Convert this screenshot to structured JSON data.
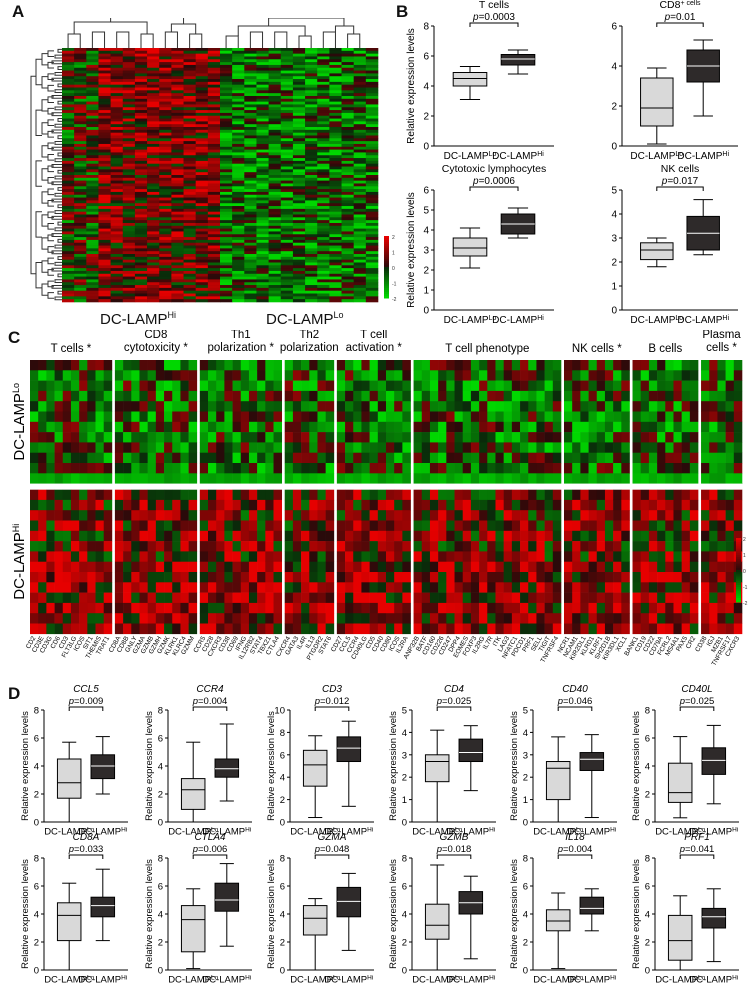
{
  "figure": {
    "panels": {
      "A": "A",
      "B": "B",
      "C": "C",
      "D": "D"
    }
  },
  "panelA": {
    "group_hi": "DC-LAMP",
    "group_hi_sup": "Hi",
    "group_lo": "DC-LAMP",
    "group_lo_sup": "Lo",
    "colorbar_ticks": [
      "2",
      "1",
      "0",
      "-1",
      "-2"
    ],
    "colors": {
      "high": "#d62020",
      "mid": "#000000",
      "low": "#2ec92e"
    }
  },
  "panelC": {
    "row_group_lo": "DC-LAMP",
    "row_group_lo_sup": "Lo",
    "row_group_hi": "DC-LAMP",
    "row_group_hi_sup": "Hi",
    "categories": [
      {
        "label": "T cells",
        "star": true,
        "genes": [
          "CD2",
          "CD3E",
          "CD3G",
          "CD6",
          "CD3",
          "FLT3LG",
          "ICOS",
          "SIT1",
          "THEMIS",
          "TRAT1"
        ]
      },
      {
        "label": "CD8 cytotoxicity",
        "star": true,
        "genes": [
          "CD8A",
          "CD8B",
          "GNLY",
          "GZMA",
          "GZMB",
          "GZMH",
          "GZMK",
          "KLRK1",
          "KLRC4",
          "GZMM"
        ]
      },
      {
        "label": "Th1 polarization",
        "star": true,
        "genes": [
          "CCR5",
          "CD28",
          "CXCR3",
          "CD38",
          "CD69",
          "IFNG",
          "IL12RB2",
          "STAT4",
          "TBX21",
          "CTLA4"
        ]
      },
      {
        "label": "Th2 polarization",
        "star": false,
        "genes": [
          "CXCR4",
          "GATA3",
          "IL4R",
          "IL13",
          "PTGDR2",
          "STAT6"
        ]
      },
      {
        "label": "T cell activation",
        "star": true,
        "genes": [
          "CD27",
          "CCL5",
          "CCR4",
          "CD40LG",
          "CD5",
          "CD40",
          "CD80",
          "ICOS",
          "IL2RA"
        ]
      },
      {
        "label": "T cell phenotype",
        "star": false,
        "genes": [
          "ANP32B",
          "BATF",
          "CD160",
          "CD226",
          "CD247",
          "DPP4",
          "EOMES",
          "FOXP3",
          "IL2RG",
          "IL7R",
          "ITK",
          "LAG3",
          "NFATC1",
          "PDCD1",
          "PRF1",
          "SELL",
          "TIGIT",
          "TNFRSF4"
        ]
      },
      {
        "label": "NK cells",
        "star": true,
        "genes": [
          "NCR1",
          "NCAM1",
          "KIR2DL1",
          "KLRD1",
          "KLRF1",
          "SH2D1B",
          "KIR3DL1",
          "XCL1"
        ]
      },
      {
        "label": "B cells",
        "star": false,
        "genes": [
          "BANK1",
          "CD19",
          "CD22",
          "CD79A",
          "FCRL2",
          "MS4A1",
          "PAX5",
          "CR2"
        ]
      },
      {
        "label": "Plasma cells",
        "star": true,
        "genes": [
          "CD38",
          "IGJ",
          "MZB1",
          "TNFRSF17",
          "CXCR3"
        ]
      }
    ],
    "colorbar_ticks": [
      "2",
      "1",
      "0",
      "-1",
      "-2"
    ]
  },
  "panelB": {
    "charts": [
      {
        "title": "T cells",
        "pval": "p=0.0003",
        "ylabel": "Relative expression levels",
        "ylim": [
          0,
          8
        ],
        "yticks": [
          "0",
          "2",
          "4",
          "6",
          "8"
        ],
        "categories": [
          "DC-LAMPLo",
          "DC-LAMPHi"
        ],
        "boxes": [
          {
            "min": 3.1,
            "q1": 4.0,
            "median": 4.5,
            "q3": 4.9,
            "max": 5.3
          },
          {
            "min": 4.8,
            "q1": 5.4,
            "median": 5.8,
            "q3": 6.1,
            "max": 6.4
          }
        ]
      },
      {
        "title": "CD8+ cells",
        "pval": "p=0.01",
        "ylabel": "",
        "ylim": [
          0,
          6
        ],
        "yticks": [
          "0",
          "2",
          "4",
          "6"
        ],
        "categories": [
          "DC-LAMPLo",
          "DC-LAMPHi"
        ],
        "boxes": [
          {
            "min": 0.1,
            "q1": 1.0,
            "median": 1.9,
            "q3": 3.4,
            "max": 3.9
          },
          {
            "min": 1.5,
            "q1": 3.2,
            "median": 4.0,
            "q3": 4.8,
            "max": 5.3
          }
        ]
      },
      {
        "title": "Cytotoxic lymphocytes",
        "pval": "p=0.0006",
        "ylabel": "Relative expression levels",
        "ylim": [
          0,
          6
        ],
        "yticks": [
          "0",
          "1",
          "2",
          "3",
          "4",
          "5",
          "6"
        ],
        "categories": [
          "DC-LAMPLo",
          "DC-LAMPHi"
        ],
        "boxes": [
          {
            "min": 2.1,
            "q1": 2.7,
            "median": 3.1,
            "q3": 3.6,
            "max": 4.1
          },
          {
            "min": 3.6,
            "q1": 3.8,
            "median": 4.3,
            "q3": 4.8,
            "max": 5.1
          }
        ]
      },
      {
        "title": "NK cells",
        "pval": "p=0.017",
        "ylabel": "",
        "ylim": [
          0,
          5
        ],
        "yticks": [
          "0",
          "1",
          "2",
          "3",
          "4",
          "5"
        ],
        "categories": [
          "DC-LAMPLo",
          "DC-LAMPHi"
        ],
        "boxes": [
          {
            "min": 1.8,
            "q1": 2.1,
            "median": 2.5,
            "q3": 2.8,
            "max": 3.0
          },
          {
            "min": 2.3,
            "q1": 2.5,
            "median": 3.2,
            "q3": 3.9,
            "max": 4.6
          }
        ]
      }
    ]
  },
  "panelD": {
    "ylabel": "Relative expression levels",
    "cat_lo": "DC-LAMPLo",
    "cat_hi": "DC-LAMPHi",
    "charts": [
      {
        "title": "CCL5",
        "pval": "p=0.009",
        "ymax": 8,
        "yticks": [
          "0",
          "2",
          "4",
          "6",
          "8"
        ],
        "boxes": [
          {
            "min": 0.0,
            "q1": 1.7,
            "median": 2.8,
            "q3": 4.5,
            "max": 5.7
          },
          {
            "min": 2.0,
            "q1": 3.1,
            "median": 4.0,
            "q3": 4.8,
            "max": 6.1
          }
        ]
      },
      {
        "title": "CCR4",
        "pval": "p=0.004",
        "ymax": 8,
        "yticks": [
          "0",
          "2",
          "4",
          "6",
          "8"
        ],
        "boxes": [
          {
            "min": 0.0,
            "q1": 0.9,
            "median": 2.3,
            "q3": 3.1,
            "max": 5.7
          },
          {
            "min": 1.5,
            "q1": 3.2,
            "median": 3.8,
            "q3": 4.5,
            "max": 7.0
          }
        ]
      },
      {
        "title": "CD3",
        "pval": "p=0.012",
        "ymax": 10,
        "yticks": [
          "0",
          "2",
          "4",
          "6",
          "8",
          "10"
        ],
        "boxes": [
          {
            "min": 0.4,
            "q1": 3.2,
            "median": 5.1,
            "q3": 6.4,
            "max": 7.7
          },
          {
            "min": 1.4,
            "q1": 5.4,
            "median": 6.6,
            "q3": 7.6,
            "max": 9.0
          }
        ]
      },
      {
        "title": "CD4",
        "pval": "p=0.025",
        "ymax": 5,
        "yticks": [
          "0",
          "1",
          "2",
          "3",
          "4",
          "5"
        ],
        "boxes": [
          {
            "min": 0.0,
            "q1": 1.8,
            "median": 2.7,
            "q3": 3.0,
            "max": 4.1
          },
          {
            "min": 1.4,
            "q1": 2.7,
            "median": 3.1,
            "q3": 3.7,
            "max": 4.3
          }
        ]
      },
      {
        "title": "CD40",
        "pval": "p=0.046",
        "ymax": 5,
        "yticks": [
          "0",
          "1",
          "2",
          "3",
          "4",
          "5"
        ],
        "boxes": [
          {
            "min": 0.0,
            "q1": 1.0,
            "median": 2.4,
            "q3": 2.7,
            "max": 3.8
          },
          {
            "min": 0.2,
            "q1": 2.3,
            "median": 2.8,
            "q3": 3.1,
            "max": 3.9
          }
        ]
      },
      {
        "title": "CD40L",
        "pval": "p=0.025",
        "ymax": 8,
        "yticks": [
          "0",
          "2",
          "4",
          "6",
          "8"
        ],
        "boxes": [
          {
            "min": 0.3,
            "q1": 1.4,
            "median": 2.1,
            "q3": 4.2,
            "max": 6.1
          },
          {
            "min": 1.3,
            "q1": 3.4,
            "median": 4.4,
            "q3": 5.3,
            "max": 6.9
          }
        ]
      },
      {
        "title": "CD8A",
        "pval": "p=0.033",
        "ymax": 8,
        "yticks": [
          "0",
          "2",
          "4",
          "6",
          "8"
        ],
        "boxes": [
          {
            "min": 0.0,
            "q1": 2.1,
            "median": 3.9,
            "q3": 4.8,
            "max": 6.2
          },
          {
            "min": 2.1,
            "q1": 3.8,
            "median": 4.6,
            "q3": 5.2,
            "max": 7.2
          }
        ]
      },
      {
        "title": "CTLA4",
        "pval": "p=0.006",
        "ymax": 8,
        "yticks": [
          "0",
          "2",
          "4",
          "6",
          "8"
        ],
        "boxes": [
          {
            "min": 0.1,
            "q1": 1.3,
            "median": 3.6,
            "q3": 4.6,
            "max": 5.8
          },
          {
            "min": 1.7,
            "q1": 4.2,
            "median": 5.0,
            "q3": 6.2,
            "max": 7.6
          }
        ]
      },
      {
        "title": "GZMA",
        "pval": "p=0.048",
        "ymax": 8,
        "yticks": [
          "0",
          "2",
          "4",
          "6",
          "8"
        ],
        "boxes": [
          {
            "min": 0.0,
            "q1": 2.5,
            "median": 3.7,
            "q3": 4.6,
            "max": 5.1
          },
          {
            "min": 1.4,
            "q1": 3.8,
            "median": 4.9,
            "q3": 5.9,
            "max": 6.9
          }
        ]
      },
      {
        "title": "GZMB",
        "pval": "p=0.018",
        "ymax": 8,
        "yticks": [
          "0",
          "2",
          "4",
          "6",
          "8"
        ],
        "boxes": [
          {
            "min": 0.0,
            "q1": 2.2,
            "median": 3.2,
            "q3": 4.7,
            "max": 7.5
          },
          {
            "min": 0.8,
            "q1": 4.0,
            "median": 4.8,
            "q3": 5.6,
            "max": 6.7
          }
        ]
      },
      {
        "title": "IL18",
        "pval": "p=0.004",
        "ymax": 8,
        "yticks": [
          "0",
          "2",
          "4",
          "6",
          "8"
        ],
        "boxes": [
          {
            "min": 0.1,
            "q1": 2.8,
            "median": 3.5,
            "q3": 4.3,
            "max": 5.5
          },
          {
            "min": 2.8,
            "q1": 4.0,
            "median": 4.4,
            "q3": 5.2,
            "max": 5.8
          }
        ]
      },
      {
        "title": "PRF1",
        "pval": "p=0.041",
        "ymax": 8,
        "yticks": [
          "0",
          "2",
          "4",
          "6",
          "8"
        ],
        "boxes": [
          {
            "min": 0.0,
            "q1": 0.7,
            "median": 2.1,
            "q3": 3.9,
            "max": 5.3
          },
          {
            "min": 0.6,
            "q1": 3.0,
            "median": 3.8,
            "q3": 4.4,
            "max": 5.8
          }
        ]
      }
    ]
  }
}
